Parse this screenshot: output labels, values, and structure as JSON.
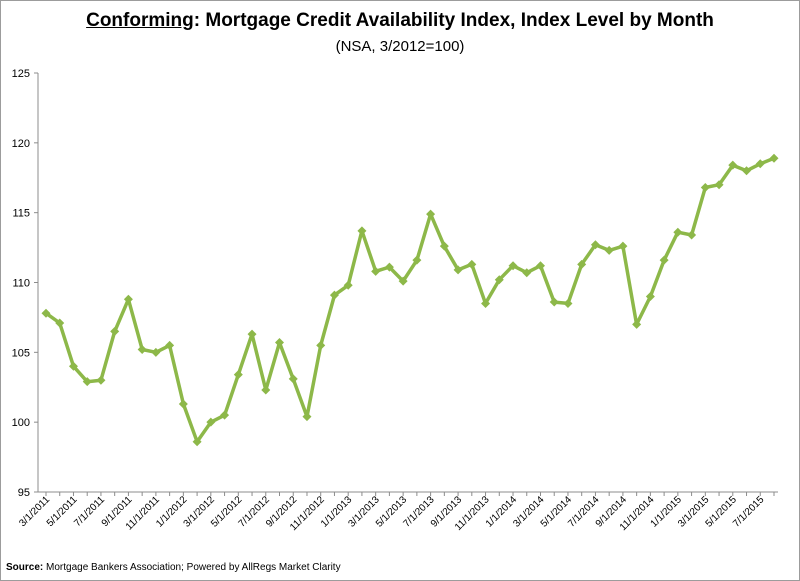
{
  "header": {
    "title_emphasis": "Conforming",
    "title_rest": ": Mortgage Credit Availability Index, Index Level by Month",
    "subtitle": "(NSA, 3/2012=100)"
  },
  "footer": {
    "source_label": "Source:",
    "source_text": " Mortgage Bankers Association; Powered by AllRegs Market Clarity"
  },
  "chart_data": {
    "type": "line",
    "title": "Conforming: Mortgage Credit Availability Index, Index Level by Month",
    "subtitle": "(NSA, 3/2012=100)",
    "xlabel": "",
    "ylabel": "",
    "ylim": [
      95,
      125
    ],
    "yticks": [
      95,
      100,
      105,
      110,
      115,
      120,
      125
    ],
    "grid": false,
    "legend": "none",
    "line_color": "#8db849",
    "x_tick_labels": [
      "3/1/2011",
      "5/1/2011",
      "7/1/2011",
      "9/1/2011",
      "11/1/2011",
      "1/1/2012",
      "3/1/2012",
      "5/1/2012",
      "7/1/2012",
      "9/1/2012",
      "11/1/2012",
      "1/1/2013",
      "3/1/2013",
      "5/1/2013",
      "7/1/2013",
      "9/1/2013",
      "11/1/2013",
      "1/1/2014",
      "3/1/2014",
      "5/1/2014",
      "7/1/2014",
      "9/1/2014",
      "11/1/2014",
      "1/1/2015",
      "3/1/2015",
      "5/1/2015",
      "7/1/2015"
    ],
    "x": [
      "3/1/2011",
      "4/1/2011",
      "5/1/2011",
      "6/1/2011",
      "7/1/2011",
      "8/1/2011",
      "9/1/2011",
      "10/1/2011",
      "11/1/2011",
      "12/1/2011",
      "1/1/2012",
      "2/1/2012",
      "3/1/2012",
      "4/1/2012",
      "5/1/2012",
      "6/1/2012",
      "7/1/2012",
      "8/1/2012",
      "9/1/2012",
      "10/1/2012",
      "11/1/2012",
      "12/1/2012",
      "1/1/2013",
      "2/1/2013",
      "3/1/2013",
      "4/1/2013",
      "5/1/2013",
      "6/1/2013",
      "7/1/2013",
      "8/1/2013",
      "9/1/2013",
      "10/1/2013",
      "11/1/2013",
      "12/1/2013",
      "1/1/2014",
      "2/1/2014",
      "3/1/2014",
      "4/1/2014",
      "5/1/2014",
      "6/1/2014",
      "7/1/2014",
      "8/1/2014",
      "9/1/2014",
      "10/1/2014",
      "11/1/2014",
      "12/1/2014",
      "1/1/2015",
      "2/1/2015",
      "3/1/2015",
      "4/1/2015",
      "5/1/2015",
      "6/1/2015",
      "7/1/2015",
      "8/1/2015"
    ],
    "series": [
      {
        "values": [
          107.8,
          107.1,
          104.0,
          102.9,
          103.0,
          106.5,
          108.8,
          105.2,
          105.0,
          105.5,
          101.3,
          98.6,
          100.0,
          100.5,
          103.4,
          106.3,
          102.3,
          105.7,
          103.1,
          100.4,
          105.5,
          109.1,
          109.8,
          113.7,
          110.8,
          111.1,
          110.1,
          111.6,
          114.9,
          112.6,
          110.9,
          111.3,
          108.5,
          110.2,
          111.2,
          110.7,
          111.2,
          108.6,
          108.5,
          111.3,
          112.7,
          112.3,
          112.6,
          107.0,
          109.0,
          111.6,
          113.6,
          113.4,
          116.8,
          117.0,
          118.4,
          118.0,
          118.5,
          118.9
        ]
      }
    ]
  }
}
